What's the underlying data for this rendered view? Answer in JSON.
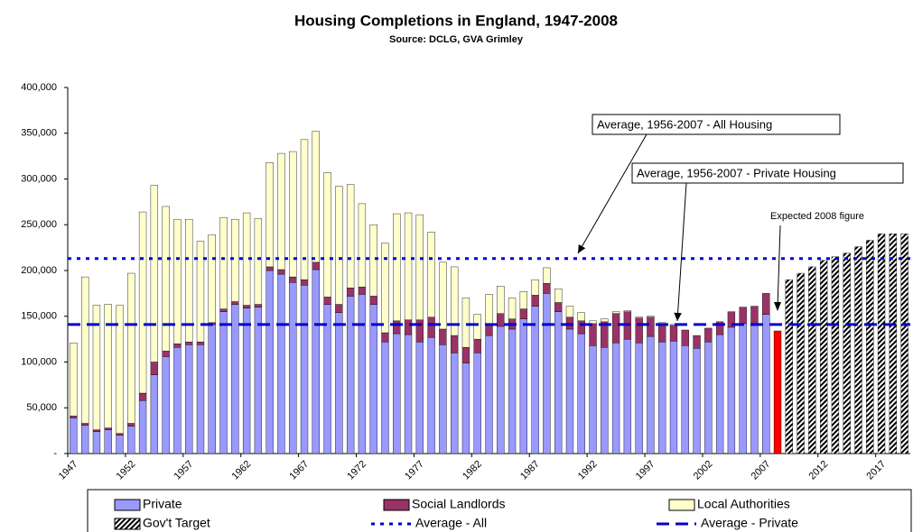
{
  "chart_data": {
    "type": "bar",
    "stacked": true,
    "title": "Housing Completions in England, 1947-2008",
    "subtitle": "Source: DCLG, GVA Grimley",
    "categories": [
      "1947",
      null,
      null,
      null,
      null,
      "1952",
      null,
      null,
      null,
      null,
      "1957",
      null,
      null,
      null,
      null,
      "1962",
      null,
      null,
      null,
      null,
      "1967",
      null,
      null,
      null,
      null,
      "1972",
      null,
      null,
      null,
      null,
      "1977",
      null,
      null,
      null,
      null,
      "1982",
      null,
      null,
      null,
      null,
      "1987",
      null,
      null,
      null,
      null,
      "1992",
      null,
      null,
      null,
      null,
      "1997",
      null,
      null,
      null,
      null,
      "2002",
      null,
      null,
      null,
      null,
      "2007",
      null,
      null,
      null,
      null,
      "2012",
      null,
      null,
      null,
      null,
      "2017",
      null,
      null
    ],
    "series": [
      {
        "name": "Private",
        "color": "#9999ff",
        "values": [
          39000,
          31000,
          24000,
          26000,
          20000,
          30000,
          58000,
          86000,
          106000,
          116000,
          119000,
          119000,
          141000,
          155000,
          163000,
          159000,
          160000,
          200000,
          196000,
          187000,
          184000,
          201000,
          163000,
          154000,
          172000,
          174000,
          163000,
          122000,
          131000,
          130000,
          122000,
          127000,
          119000,
          110000,
          99000,
          110000,
          129000,
          139000,
          136000,
          147000,
          161000,
          175000,
          155000,
          136000,
          131000,
          118000,
          116000,
          121000,
          125000,
          121000,
          128000,
          122000,
          123000,
          118000,
          115000,
          122000,
          130000,
          138000,
          142000,
          140000,
          152000,
          null,
          null,
          null,
          null,
          null,
          null,
          null,
          null,
          null,
          null,
          null,
          null
        ]
      },
      {
        "name": "Social Landlords",
        "color": "#993366",
        "values": [
          2000,
          2000,
          2000,
          2000,
          2000,
          3000,
          8000,
          14000,
          6000,
          4000,
          3000,
          3000,
          2000,
          3000,
          3000,
          3000,
          3000,
          4000,
          5000,
          6000,
          6000,
          8000,
          8000,
          9000,
          9000,
          8000,
          9000,
          10000,
          14000,
          16000,
          24000,
          22000,
          17000,
          19000,
          17000,
          15000,
          12000,
          14000,
          11000,
          11000,
          12000,
          11000,
          10000,
          13000,
          14000,
          24000,
          28000,
          32000,
          30000,
          27000,
          21000,
          20000,
          17000,
          17000,
          14000,
          15000,
          14000,
          17000,
          18000,
          21000,
          23000,
          null,
          null,
          null,
          null,
          null,
          null,
          null,
          null,
          null,
          null,
          null,
          null
        ]
      },
      {
        "name": "Local Authorities",
        "color": "#ffffcc",
        "values": [
          80000,
          160000,
          136000,
          135000,
          140000,
          164000,
          198000,
          193000,
          158000,
          136000,
          134000,
          110000,
          96000,
          100000,
          90000,
          101000,
          94000,
          114000,
          127000,
          137000,
          153000,
          143000,
          136000,
          129000,
          113000,
          91000,
          78000,
          98000,
          117000,
          117000,
          115000,
          93000,
          73000,
          75000,
          54000,
          27000,
          33000,
          30000,
          23000,
          19000,
          17000,
          17000,
          15000,
          12000,
          9000,
          3000,
          3000,
          2000,
          1000,
          1000,
          1000,
          1000,
          1000,
          0,
          0,
          0,
          0,
          0,
          0,
          0,
          0,
          null,
          null,
          null,
          null,
          null,
          null,
          null,
          null,
          null,
          null,
          null,
          null
        ]
      },
      {
        "name": "Gov't Target",
        "color": "#000000",
        "pattern": "hatch",
        "values": [
          null,
          null,
          null,
          null,
          null,
          null,
          null,
          null,
          null,
          null,
          null,
          null,
          null,
          null,
          null,
          null,
          null,
          null,
          null,
          null,
          null,
          null,
          null,
          null,
          null,
          null,
          null,
          null,
          null,
          null,
          null,
          null,
          null,
          null,
          null,
          null,
          null,
          null,
          null,
          null,
          null,
          null,
          null,
          null,
          null,
          null,
          null,
          null,
          null,
          null,
          null,
          null,
          null,
          null,
          null,
          null,
          null,
          null,
          null,
          null,
          null,
          null,
          190000,
          197000,
          204000,
          211000,
          215000,
          219000,
          226000,
          233000,
          240000,
          240000,
          240000
        ]
      }
    ],
    "expected": {
      "label": "Expected 2008 figure",
      "index": 61,
      "value": 134000,
      "color": "#ff0000"
    },
    "lines": [
      {
        "name": "Average  - All",
        "color": "#0000cc",
        "style": "dotted",
        "value": 213000,
        "annotation": "Average, 1956-2007 - All Housing"
      },
      {
        "name": "Average - Private",
        "color": "#0000cc",
        "style": "dashed",
        "value": 141000,
        "annotation": "Average, 1956-2007 - Private Housing"
      }
    ],
    "ylim": [
      0,
      400000
    ],
    "yticks": [
      {
        "value": 0,
        "label": "-"
      },
      {
        "value": 50000,
        "label": "50,000"
      },
      {
        "value": 100000,
        "label": "100,000"
      },
      {
        "value": 150000,
        "label": "150,000"
      },
      {
        "value": 200000,
        "label": "200,000"
      },
      {
        "value": 250000,
        "label": "250,000"
      },
      {
        "value": 300000,
        "label": "300,000"
      },
      {
        "value": 350000,
        "label": "350,000"
      },
      {
        "value": 400000,
        "label": "400,000"
      }
    ],
    "legend": "bottom"
  }
}
